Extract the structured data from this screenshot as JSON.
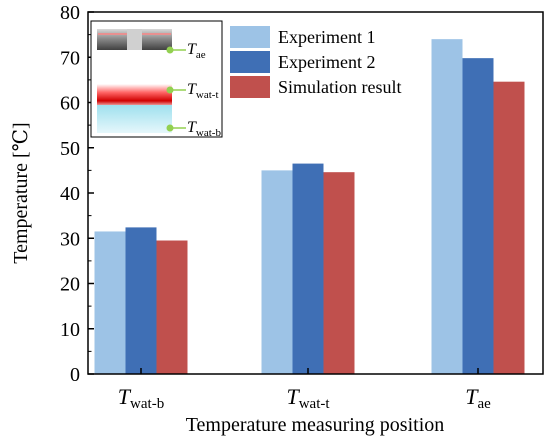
{
  "chart_data": {
    "type": "bar",
    "categories": [
      {
        "main": "T",
        "sub": "wat-b"
      },
      {
        "main": "T",
        "sub": "wat-t"
      },
      {
        "main": "T",
        "sub": "ae"
      }
    ],
    "series": [
      {
        "name": "Experiment 1",
        "values": [
          31.5,
          45.0,
          74.0
        ]
      },
      {
        "name": "Experiment 2",
        "values": [
          32.4,
          46.5,
          69.8
        ]
      },
      {
        "name": "Simulation result",
        "values": [
          29.5,
          44.6,
          64.6
        ]
      }
    ],
    "xlabel": "Temperature measuring position",
    "ylabel": "Temperature [℃]",
    "ylim": [
      0,
      80
    ],
    "yticks": [
      0,
      10,
      20,
      30,
      40,
      50,
      60,
      70,
      80
    ],
    "legend_position": "top-center",
    "grid": false
  },
  "colors": {
    "series": [
      "#9dc3e6",
      "#3f6fb5",
      "#c0504d"
    ],
    "inset_point": "#92d050"
  },
  "inset": {
    "labels": [
      {
        "main": "T",
        "sub": "ae"
      },
      {
        "main": "T",
        "sub": "wat-t"
      },
      {
        "main": "T",
        "sub": "wat-b"
      }
    ]
  }
}
